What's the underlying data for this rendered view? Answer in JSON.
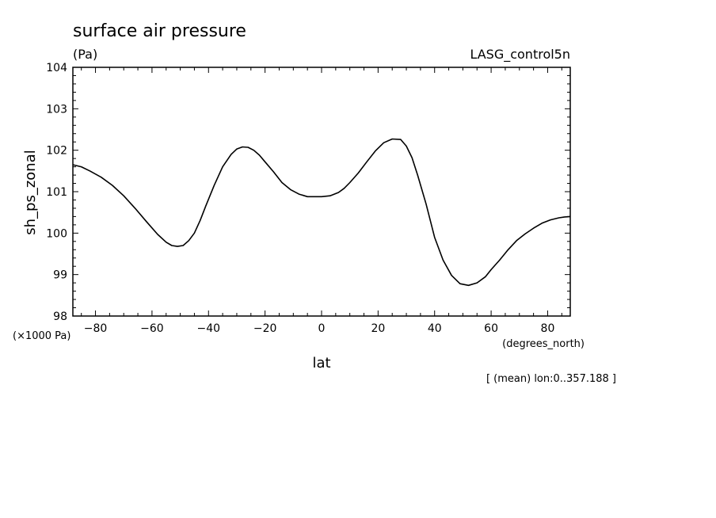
{
  "chart_data": {
    "type": "line",
    "title": "surface air pressure",
    "title_units": "(Pa)",
    "dataset_label": "LASG_control5n",
    "xlabel": "lat",
    "x_units": "(degrees_north)",
    "ylabel": "sh_ps_zonal",
    "y_multiplier_label": "(×1000 Pa)",
    "footnote": "[ (mean) lon:0..357.188 ]",
    "xlim": [
      -88,
      88
    ],
    "ylim": [
      98,
      104
    ],
    "x_ticks": [
      -80,
      -60,
      -40,
      -20,
      0,
      20,
      40,
      60,
      80
    ],
    "x_tick_labels": [
      "−80",
      "−60",
      "−40",
      "−20",
      "0",
      "20",
      "40",
      "60",
      "80"
    ],
    "y_ticks": [
      98,
      99,
      100,
      101,
      102,
      103,
      104
    ],
    "y_tick_labels": [
      "98",
      "99",
      "100",
      "101",
      "102",
      "103",
      "104"
    ],
    "grid": false,
    "line_color": "#000000",
    "series": [
      {
        "x": [
          -88,
          -85,
          -82,
          -78,
          -74,
          -70,
          -66,
          -62,
          -58,
          -55,
          -53,
          -51,
          -49,
          -47,
          -45,
          -43,
          -41,
          -38,
          -35,
          -32,
          -30,
          -28,
          -26,
          -24,
          -22,
          -20,
          -17,
          -14,
          -11,
          -8,
          -5,
          -2,
          0,
          3,
          6,
          8,
          10,
          13,
          16,
          19,
          22,
          25,
          28,
          30,
          32,
          34,
          37,
          40,
          43,
          46,
          49,
          52,
          55,
          58,
          60,
          63,
          66,
          69,
          72,
          75,
          78,
          81,
          84,
          86,
          88
        ],
        "y": [
          101.65,
          101.6,
          101.5,
          101.35,
          101.15,
          100.9,
          100.6,
          100.28,
          99.97,
          99.78,
          99.7,
          99.68,
          99.7,
          99.82,
          100.0,
          100.3,
          100.65,
          101.15,
          101.6,
          101.9,
          102.03,
          102.08,
          102.07,
          102.0,
          101.88,
          101.72,
          101.48,
          101.22,
          101.05,
          100.94,
          100.88,
          100.88,
          100.88,
          100.9,
          100.98,
          101.08,
          101.22,
          101.45,
          101.72,
          101.98,
          102.18,
          102.27,
          102.26,
          102.1,
          101.82,
          101.4,
          100.7,
          99.9,
          99.35,
          98.98,
          98.78,
          98.74,
          98.8,
          98.95,
          99.12,
          99.35,
          99.6,
          99.82,
          99.98,
          100.12,
          100.24,
          100.32,
          100.37,
          100.39,
          100.4
        ]
      }
    ]
  }
}
